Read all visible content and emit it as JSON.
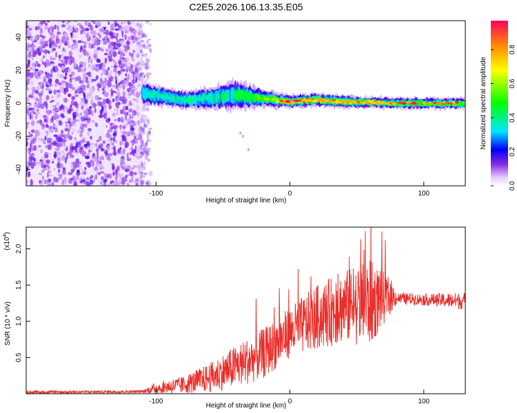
{
  "figure_title": "C2E5.2026.106.13.35.E05",
  "chart_data": [
    {
      "type": "heatmap",
      "title": "C2E5.2026.106.13.35.E05",
      "xlabel": "Height of straight line (km)",
      "ylabel": "Frequency (Hz)",
      "xlim": [
        -197,
        131
      ],
      "ylim": [
        -50,
        50
      ],
      "xticks": [
        -100,
        0,
        100
      ],
      "yticks": [
        -40,
        -20,
        0,
        20,
        40
      ],
      "colorbar": {
        "label": "Normalized spectral amplitude",
        "range": [
          0.0,
          0.97
        ],
        "ticks": [
          0.0,
          0.2,
          0.4,
          0.6,
          0.8
        ]
      },
      "noise_region_x": [
        -197,
        -110
      ],
      "ridge_x": [
        -110,
        -80,
        -60,
        -40,
        -20,
        0,
        20,
        40,
        60,
        80,
        100,
        131
      ],
      "ridge_center_hz": [
        6,
        2,
        3,
        5,
        3,
        1,
        2,
        1,
        0.5,
        0,
        0,
        0
      ],
      "ridge_halfwidth_hz": [
        5,
        4,
        5,
        7,
        4,
        3,
        3,
        3,
        2.5,
        2.5,
        2.5,
        2.5
      ],
      "ridge_peak_amplitude": [
        0.35,
        0.4,
        0.4,
        0.45,
        0.55,
        0.9,
        0.75,
        0.75,
        0.8,
        0.6,
        0.6,
        0.6
      ]
    },
    {
      "type": "line",
      "xlabel": "Height of straight line (km)",
      "ylabel": "SNR (10 * v/v)",
      "scale_label": "(x10",
      "scale_exponent": "4",
      "xlim": [
        -197,
        131
      ],
      "ylim": [
        0,
        2.3
      ],
      "xticks": [
        -100,
        0,
        100
      ],
      "yticks": [
        0.5,
        1.0,
        1.5,
        2.0
      ],
      "ytick_labels": [
        "0.5",
        "1.0",
        "1.5",
        "2.0"
      ],
      "series": [
        {
          "name": "SNR",
          "color": "#e8302c",
          "envelope_x": [
            -197,
            -110,
            -100,
            -80,
            -60,
            -40,
            -20,
            0,
            20,
            40,
            60,
            75,
            80,
            100,
            131
          ],
          "envelope_mean": [
            0.02,
            0.03,
            0.08,
            0.12,
            0.22,
            0.38,
            0.55,
            0.85,
            1.05,
            1.2,
            1.25,
            1.35,
            1.32,
            1.3,
            1.28
          ],
          "envelope_spread": [
            0.02,
            0.02,
            0.08,
            0.12,
            0.2,
            0.3,
            0.35,
            0.35,
            0.45,
            0.5,
            0.6,
            0.25,
            0.08,
            0.08,
            0.12
          ]
        }
      ]
    }
  ],
  "colors": {
    "line": "#e8302c",
    "noise": "#7b2ee6",
    "axis": "#000000"
  }
}
